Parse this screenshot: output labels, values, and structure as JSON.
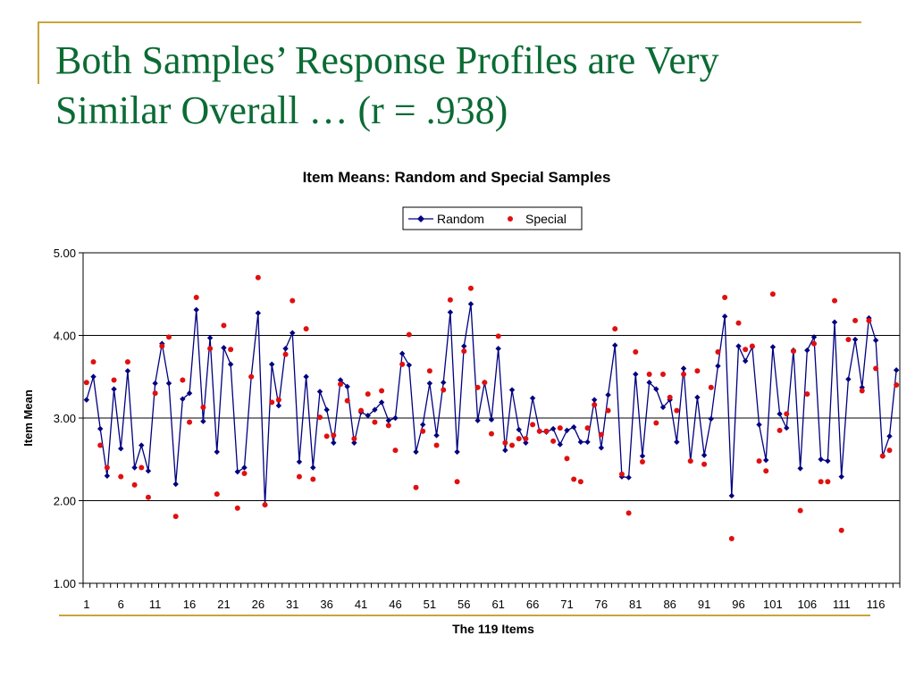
{
  "slide": {
    "title_line1": "Both Samples’ Response Profiles are Very",
    "title_line2": "Similar Overall … (r = .938)"
  },
  "colors": {
    "accent_rule": "#c9a43a",
    "title": "#0b6b34",
    "random": "#000080",
    "special": "#e01010"
  },
  "chart_data": {
    "type": "line",
    "title": "Item Means: Random and Special Samples",
    "xlabel": "The 119 Items",
    "ylabel": "Item Mean",
    "ylim": [
      1.0,
      5.0
    ],
    "yticks": [
      "1.00",
      "2.00",
      "3.00",
      "4.00",
      "5.00"
    ],
    "xtick_labels": [
      "1",
      "6",
      "11",
      "16",
      "21",
      "26",
      "31",
      "36",
      "41",
      "46",
      "51",
      "56",
      "61",
      "66",
      "71",
      "76",
      "81",
      "86",
      "91",
      "96",
      "101",
      "106",
      "111",
      "116"
    ],
    "x": [
      1,
      2,
      3,
      4,
      5,
      6,
      7,
      8,
      9,
      10,
      11,
      12,
      13,
      14,
      15,
      16,
      17,
      18,
      19,
      20,
      21,
      22,
      23,
      24,
      25,
      26,
      27,
      28,
      29,
      30,
      31,
      32,
      33,
      34,
      35,
      36,
      37,
      38,
      39,
      40,
      41,
      42,
      43,
      44,
      45,
      46,
      47,
      48,
      49,
      50,
      51,
      52,
      53,
      54,
      55,
      56,
      57,
      58,
      59,
      60,
      61,
      62,
      63,
      64,
      65,
      66,
      67,
      68,
      69,
      70,
      71,
      72,
      73,
      74,
      75,
      76,
      77,
      78,
      79,
      80,
      81,
      82,
      83,
      84,
      85,
      86,
      87,
      88,
      89,
      90,
      91,
      92,
      93,
      94,
      95,
      96,
      97,
      98,
      99,
      100,
      101,
      102,
      103,
      104,
      105,
      106,
      107,
      108,
      109,
      110,
      111,
      112,
      113,
      114,
      115,
      116,
      117,
      118,
      119
    ],
    "legend": {
      "position": "top",
      "entries": [
        "Random",
        "Special"
      ]
    },
    "grid": true,
    "series": [
      {
        "name": "Random",
        "style": "line-diamond",
        "values": [
          3.22,
          3.5,
          2.87,
          2.3,
          3.35,
          2.63,
          3.57,
          2.4,
          2.67,
          2.36,
          3.42,
          3.9,
          3.42,
          2.2,
          3.23,
          3.3,
          4.31,
          2.96,
          3.97,
          2.59,
          3.85,
          3.65,
          2.35,
          2.4,
          3.5,
          4.27,
          1.95,
          3.65,
          3.15,
          3.84,
          4.03,
          2.47,
          3.5,
          2.4,
          3.32,
          3.1,
          2.7,
          3.46,
          3.38,
          2.7,
          3.07,
          3.03,
          3.1,
          3.19,
          2.97,
          3.0,
          3.78,
          3.64,
          2.59,
          2.92,
          3.42,
          2.79,
          3.43,
          4.28,
          2.59,
          3.87,
          4.38,
          2.97,
          3.43,
          2.98,
          3.84,
          2.61,
          3.34,
          2.86,
          2.7,
          3.24,
          2.84,
          2.83,
          2.87,
          2.68,
          2.85,
          2.89,
          2.71,
          2.71,
          3.22,
          2.64,
          3.28,
          3.88,
          2.29,
          2.28,
          3.53,
          2.54,
          3.43,
          3.35,
          3.13,
          3.22,
          2.71,
          3.6,
          2.48,
          3.25,
          2.55,
          2.99,
          3.63,
          4.23,
          2.06,
          3.87,
          3.69,
          3.86,
          2.92,
          2.49,
          3.86,
          3.05,
          2.88,
          3.82,
          2.39,
          3.82,
          3.98,
          2.5,
          2.48,
          4.16,
          2.29,
          3.47,
          3.95,
          3.37,
          4.21,
          3.94,
          2.54,
          2.78,
          3.58
        ]
      },
      {
        "name": "Special",
        "style": "dots",
        "values": [
          3.43,
          3.68,
          2.67,
          2.4,
          3.46,
          2.29,
          3.68,
          2.19,
          2.4,
          2.04,
          3.3,
          3.87,
          3.98,
          1.81,
          3.46,
          2.95,
          4.46,
          3.13,
          3.84,
          2.08,
          4.12,
          3.83,
          1.91,
          2.33,
          3.5,
          4.7,
          1.95,
          3.19,
          3.22,
          3.77,
          4.42,
          2.29,
          4.08,
          2.26,
          3.01,
          2.78,
          2.79,
          3.41,
          3.21,
          2.75,
          3.09,
          3.29,
          2.95,
          3.33,
          2.91,
          2.61,
          3.65,
          4.01,
          2.16,
          2.84,
          3.57,
          2.67,
          3.34,
          4.43,
          2.23,
          3.81,
          4.57,
          3.37,
          3.43,
          2.81,
          3.99,
          2.7,
          2.67,
          2.75,
          2.75,
          2.92,
          2.84,
          2.84,
          2.72,
          2.88,
          2.51,
          2.26,
          2.23,
          2.88,
          3.16,
          2.8,
          3.09,
          4.08,
          2.32,
          1.85,
          3.8,
          2.47,
          3.53,
          2.94,
          3.53,
          3.25,
          3.09,
          3.53,
          2.48,
          3.57,
          2.44,
          3.37,
          3.8,
          4.46,
          1.54,
          4.15,
          3.83,
          3.87,
          2.48,
          2.36,
          4.5,
          2.85,
          3.05,
          3.81,
          1.88,
          3.29,
          3.9,
          2.23,
          2.23,
          4.42,
          1.64,
          3.95,
          4.18,
          3.33,
          4.18,
          3.6,
          2.54,
          2.61,
          3.4
        ]
      }
    ]
  }
}
